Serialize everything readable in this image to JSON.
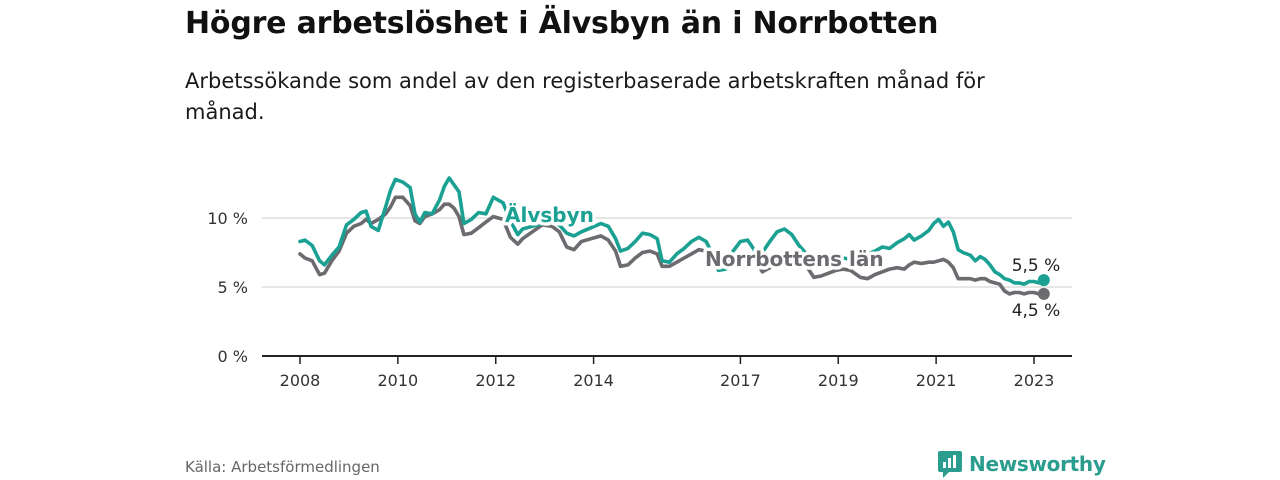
{
  "header": {
    "title": "Högre arbetslöshet i Älvsbyn än i Norrbotten",
    "subtitle": "Arbetssökande som andel av den registerbaserade arbetskraften månad för månad."
  },
  "footer": {
    "source": "Källa: Arbetsförmedlingen",
    "brand": "Newsworthy"
  },
  "colors": {
    "alvsbyn": "#1aa193",
    "norrbotten": "#6b6b70",
    "grid": "#d6d6d6",
    "axis": "#222222"
  },
  "chart_data": {
    "type": "line",
    "title": "Högre arbetslöshet i Älvsbyn än i Norrbotten",
    "ylim": [
      0,
      14
    ],
    "xlim": [
      2007.5,
      2023.8
    ],
    "y_ticks": [
      {
        "value": 0,
        "label": "0 %"
      },
      {
        "value": 5,
        "label": "5 %"
      },
      {
        "value": 10,
        "label": "10 %"
      }
    ],
    "x_ticks": [
      {
        "value": 2008,
        "label": "2008"
      },
      {
        "value": 2010,
        "label": "2010"
      },
      {
        "value": 2012,
        "label": "2012"
      },
      {
        "value": 2014,
        "label": "2014"
      },
      {
        "value": 2017,
        "label": "2017"
      },
      {
        "value": 2019,
        "label": "2019"
      },
      {
        "value": 2021,
        "label": "2021"
      },
      {
        "value": 2023,
        "label": "2023"
      }
    ],
    "series": [
      {
        "name": "Älvsbyn",
        "label": "Älvsbyn",
        "end_label": "5,5 %",
        "points": [
          [
            2008.0,
            8.3
          ],
          [
            2008.1,
            8.4
          ],
          [
            2008.25,
            8.0
          ],
          [
            2008.4,
            6.9
          ],
          [
            2008.5,
            6.6
          ],
          [
            2008.65,
            7.3
          ],
          [
            2008.8,
            7.9
          ],
          [
            2008.95,
            9.5
          ],
          [
            2009.1,
            9.9
          ],
          [
            2009.25,
            10.4
          ],
          [
            2009.35,
            10.5
          ],
          [
            2009.45,
            9.4
          ],
          [
            2009.6,
            9.1
          ],
          [
            2009.75,
            10.8
          ],
          [
            2009.85,
            12.0
          ],
          [
            2009.95,
            12.8
          ],
          [
            2010.1,
            12.6
          ],
          [
            2010.25,
            12.2
          ],
          [
            2010.35,
            10.3
          ],
          [
            2010.45,
            9.7
          ],
          [
            2010.55,
            10.4
          ],
          [
            2010.7,
            10.3
          ],
          [
            2010.85,
            11.3
          ],
          [
            2010.95,
            12.3
          ],
          [
            2011.05,
            12.9
          ],
          [
            2011.15,
            12.4
          ],
          [
            2011.25,
            11.9
          ],
          [
            2011.35,
            9.6
          ],
          [
            2011.5,
            9.9
          ],
          [
            2011.65,
            10.4
          ],
          [
            2011.8,
            10.3
          ],
          [
            2011.95,
            11.5
          ],
          [
            2012.05,
            11.3
          ],
          [
            2012.15,
            11.1
          ],
          [
            2012.3,
            9.8
          ],
          [
            2012.45,
            8.8
          ],
          [
            2012.55,
            9.2
          ],
          [
            2012.75,
            9.4
          ],
          [
            2012.95,
            9.6
          ],
          [
            2013.15,
            9.8
          ],
          [
            2013.3,
            9.5
          ],
          [
            2013.45,
            8.9
          ],
          [
            2013.6,
            8.7
          ],
          [
            2013.75,
            9.0
          ],
          [
            2013.95,
            9.3
          ],
          [
            2014.15,
            9.6
          ],
          [
            2014.3,
            9.4
          ],
          [
            2014.45,
            8.5
          ],
          [
            2014.55,
            7.6
          ],
          [
            2014.7,
            7.8
          ],
          [
            2014.85,
            8.3
          ],
          [
            2015.0,
            8.9
          ],
          [
            2015.15,
            8.8
          ],
          [
            2015.3,
            8.5
          ],
          [
            2015.4,
            6.9
          ],
          [
            2015.55,
            6.8
          ],
          [
            2015.7,
            7.4
          ],
          [
            2015.85,
            7.8
          ],
          [
            2016.0,
            8.3
          ],
          [
            2016.15,
            8.6
          ],
          [
            2016.3,
            8.3
          ],
          [
            2016.4,
            7.6
          ],
          [
            2016.55,
            6.2
          ],
          [
            2016.7,
            6.3
          ],
          [
            2016.85,
            7.6
          ],
          [
            2017.0,
            8.3
          ],
          [
            2017.15,
            8.4
          ],
          [
            2017.3,
            7.6
          ],
          [
            2017.45,
            7.5
          ],
          [
            2017.6,
            8.3
          ],
          [
            2017.75,
            9.0
          ],
          [
            2017.9,
            9.2
          ],
          [
            2018.05,
            8.8
          ],
          [
            2018.2,
            8.0
          ],
          [
            2018.35,
            7.4
          ],
          [
            2018.5,
            7.2
          ],
          [
            2018.65,
            6.9
          ],
          [
            2018.8,
            7.0
          ],
          [
            2018.95,
            7.2
          ],
          [
            2019.1,
            7.1
          ],
          [
            2019.25,
            7.0
          ],
          [
            2019.45,
            7.3
          ],
          [
            2019.6,
            7.4
          ],
          [
            2019.75,
            7.6
          ],
          [
            2019.9,
            7.9
          ],
          [
            2020.05,
            7.8
          ],
          [
            2020.2,
            8.2
          ],
          [
            2020.35,
            8.5
          ],
          [
            2020.45,
            8.8
          ],
          [
            2020.55,
            8.4
          ],
          [
            2020.7,
            8.7
          ],
          [
            2020.85,
            9.1
          ],
          [
            2020.95,
            9.6
          ],
          [
            2021.05,
            9.9
          ],
          [
            2021.15,
            9.4
          ],
          [
            2021.25,
            9.7
          ],
          [
            2021.35,
            9.0
          ],
          [
            2021.45,
            7.7
          ],
          [
            2021.55,
            7.5
          ],
          [
            2021.7,
            7.3
          ],
          [
            2021.8,
            6.9
          ],
          [
            2021.9,
            7.2
          ],
          [
            2022.0,
            7.0
          ],
          [
            2022.1,
            6.6
          ],
          [
            2022.2,
            6.1
          ],
          [
            2022.3,
            5.9
          ],
          [
            2022.4,
            5.6
          ],
          [
            2022.5,
            5.5
          ],
          [
            2022.6,
            5.3
          ],
          [
            2022.7,
            5.3
          ],
          [
            2022.8,
            5.2
          ],
          [
            2022.9,
            5.4
          ],
          [
            2023.0,
            5.4
          ],
          [
            2023.1,
            5.3
          ],
          [
            2023.2,
            5.5
          ]
        ]
      },
      {
        "name": "Norrbottens län",
        "label": "Norrbottens län",
        "end_label": "4,5 %",
        "points": [
          [
            2008.0,
            7.4
          ],
          [
            2008.1,
            7.1
          ],
          [
            2008.25,
            6.9
          ],
          [
            2008.4,
            5.9
          ],
          [
            2008.5,
            6.0
          ],
          [
            2008.65,
            6.9
          ],
          [
            2008.8,
            7.6
          ],
          [
            2008.95,
            8.9
          ],
          [
            2009.1,
            9.4
          ],
          [
            2009.25,
            9.6
          ],
          [
            2009.35,
            9.9
          ],
          [
            2009.45,
            9.6
          ],
          [
            2009.6,
            9.9
          ],
          [
            2009.75,
            10.3
          ],
          [
            2009.85,
            10.8
          ],
          [
            2009.95,
            11.5
          ],
          [
            2010.1,
            11.5
          ],
          [
            2010.25,
            10.9
          ],
          [
            2010.35,
            9.8
          ],
          [
            2010.45,
            9.6
          ],
          [
            2010.55,
            10.1
          ],
          [
            2010.7,
            10.3
          ],
          [
            2010.85,
            10.6
          ],
          [
            2010.95,
            11.0
          ],
          [
            2011.05,
            11.0
          ],
          [
            2011.15,
            10.7
          ],
          [
            2011.25,
            10.1
          ],
          [
            2011.35,
            8.8
          ],
          [
            2011.5,
            8.9
          ],
          [
            2011.65,
            9.3
          ],
          [
            2011.8,
            9.7
          ],
          [
            2011.95,
            10.1
          ],
          [
            2012.05,
            10.0
          ],
          [
            2012.15,
            9.9
          ],
          [
            2012.3,
            8.6
          ],
          [
            2012.45,
            8.1
          ],
          [
            2012.55,
            8.5
          ],
          [
            2012.75,
            9.0
          ],
          [
            2012.95,
            9.5
          ],
          [
            2013.15,
            9.4
          ],
          [
            2013.3,
            9.0
          ],
          [
            2013.45,
            7.9
          ],
          [
            2013.6,
            7.7
          ],
          [
            2013.75,
            8.3
          ],
          [
            2013.95,
            8.5
          ],
          [
            2014.15,
            8.7
          ],
          [
            2014.3,
            8.4
          ],
          [
            2014.45,
            7.6
          ],
          [
            2014.55,
            6.5
          ],
          [
            2014.7,
            6.6
          ],
          [
            2014.85,
            7.1
          ],
          [
            2015.0,
            7.5
          ],
          [
            2015.15,
            7.6
          ],
          [
            2015.3,
            7.4
          ],
          [
            2015.4,
            6.5
          ],
          [
            2015.55,
            6.5
          ],
          [
            2015.7,
            6.8
          ],
          [
            2015.85,
            7.1
          ],
          [
            2016.0,
            7.4
          ],
          [
            2016.15,
            7.7
          ],
          [
            2016.3,
            7.6
          ],
          [
            2016.4,
            7.2
          ],
          [
            2016.55,
            6.3
          ],
          [
            2016.7,
            6.4
          ],
          [
            2016.85,
            6.9
          ],
          [
            2017.0,
            7.2
          ],
          [
            2017.15,
            7.3
          ],
          [
            2017.3,
            7.0
          ],
          [
            2017.45,
            6.1
          ],
          [
            2017.6,
            6.4
          ],
          [
            2017.75,
            6.9
          ],
          [
            2017.9,
            7.2
          ],
          [
            2018.05,
            7.3
          ],
          [
            2018.2,
            6.9
          ],
          [
            2018.35,
            6.5
          ],
          [
            2018.5,
            5.7
          ],
          [
            2018.65,
            5.8
          ],
          [
            2018.8,
            6.0
          ],
          [
            2018.95,
            6.2
          ],
          [
            2019.1,
            6.3
          ],
          [
            2019.25,
            6.2
          ],
          [
            2019.45,
            5.7
          ],
          [
            2019.6,
            5.6
          ],
          [
            2019.75,
            5.9
          ],
          [
            2019.9,
            6.1
          ],
          [
            2020.05,
            6.3
          ],
          [
            2020.2,
            6.4
          ],
          [
            2020.35,
            6.3
          ],
          [
            2020.45,
            6.6
          ],
          [
            2020.55,
            6.8
          ],
          [
            2020.7,
            6.7
          ],
          [
            2020.85,
            6.8
          ],
          [
            2020.95,
            6.8
          ],
          [
            2021.05,
            6.9
          ],
          [
            2021.15,
            7.0
          ],
          [
            2021.25,
            6.8
          ],
          [
            2021.35,
            6.4
          ],
          [
            2021.45,
            5.6
          ],
          [
            2021.55,
            5.6
          ],
          [
            2021.7,
            5.6
          ],
          [
            2021.8,
            5.5
          ],
          [
            2021.9,
            5.6
          ],
          [
            2022.0,
            5.6
          ],
          [
            2022.1,
            5.4
          ],
          [
            2022.2,
            5.3
          ],
          [
            2022.3,
            5.2
          ],
          [
            2022.4,
            4.7
          ],
          [
            2022.5,
            4.5
          ],
          [
            2022.6,
            4.6
          ],
          [
            2022.7,
            4.6
          ],
          [
            2022.8,
            4.5
          ],
          [
            2022.9,
            4.6
          ],
          [
            2023.0,
            4.6
          ],
          [
            2023.1,
            4.5
          ],
          [
            2023.2,
            4.5
          ]
        ]
      }
    ]
  }
}
